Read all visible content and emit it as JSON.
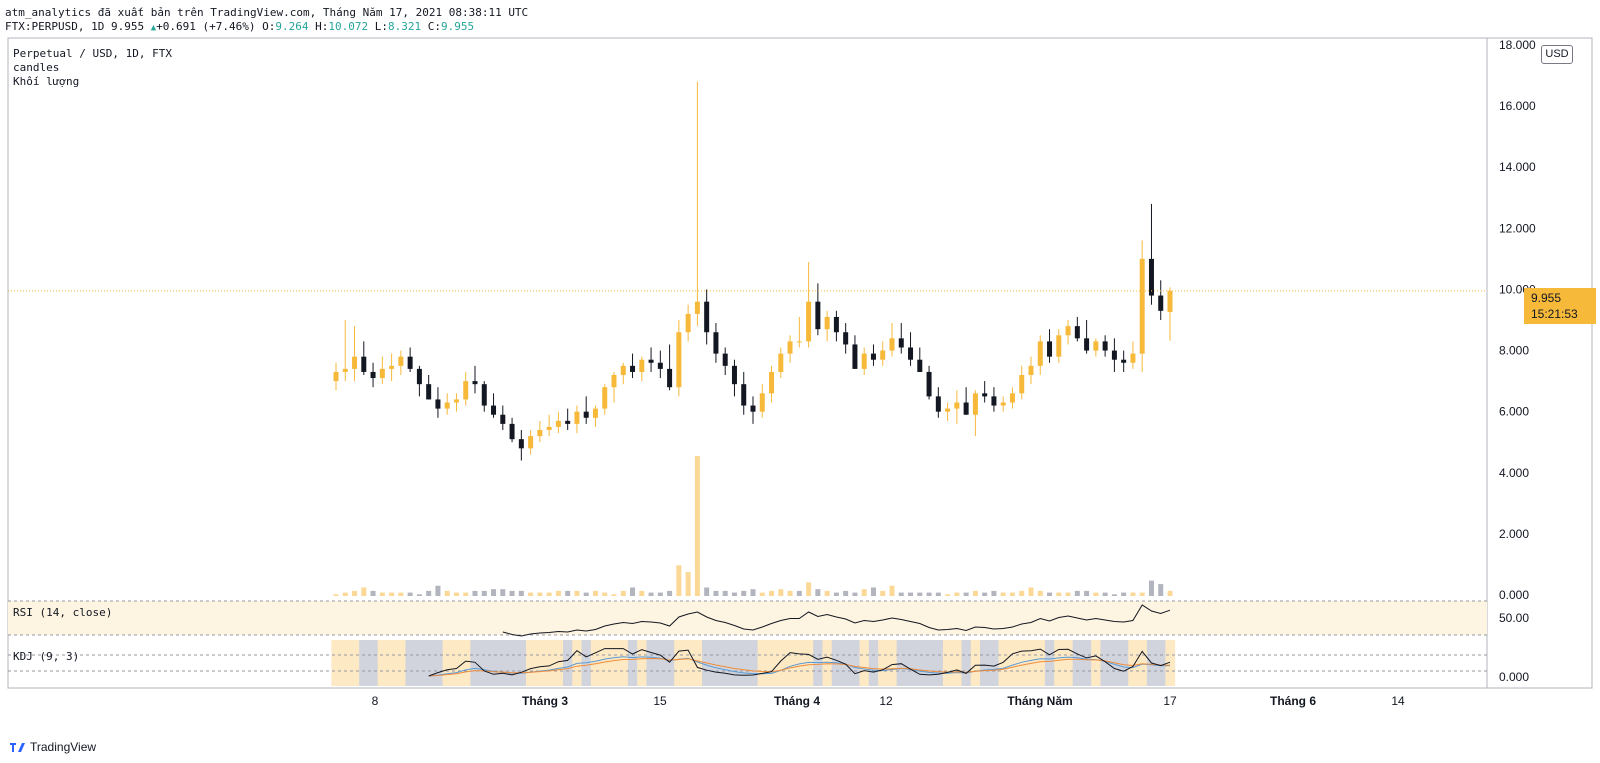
{
  "header": {
    "publisher_line": "atm_analytics đã xuất bản trên TradingView.com, Tháng Năm 17, 2021 08:38:11 UTC",
    "symbol": "FTX:PERPUSD, 1D",
    "last": "9.955",
    "change": "+0.691 (+7.46%)",
    "o_label": "O:",
    "o_value": "9.264",
    "h_label": "H:",
    "h_value": "10.072",
    "l_label": "L:",
    "l_value": "8.321",
    "c_label": "C:",
    "c_value": "9.955"
  },
  "legend": {
    "title": "Perpetual / USD, 1D, FTX",
    "series1": "candles",
    "series2": "Khối lượng"
  },
  "currency_button": "USD",
  "last_price_tag": {
    "price": "9.955",
    "countdown": "15:21:53"
  },
  "branding": "TradingView",
  "colors": {
    "up": "#f7b93a",
    "down": "#131722",
    "volume_up": "#fcd896",
    "volume_down": "#b2b5be",
    "rsi_band": "#fdf4e1",
    "kdj_k": "#5b9bd5",
    "kdj_d": "#f08c3a",
    "kdj_j": "#131722",
    "kdj_bg_up": "#fde9c4",
    "kdj_bg_down": "#d1d4dc"
  },
  "chart_data": {
    "type": "candlestick",
    "price_axis": {
      "ticks": [
        "18.000",
        "16.000",
        "14.000",
        "12.000",
        "10.000",
        "8.000",
        "6.000",
        "4.000",
        "2.000",
        "0.000"
      ],
      "ylim": [
        0,
        18
      ]
    },
    "x_axis": {
      "ticks": [
        "8",
        "Tháng 3",
        "15",
        "Tháng 4",
        "12",
        "Tháng Năm",
        "17",
        "Tháng 6",
        "14"
      ]
    },
    "candles": [
      [
        7.0,
        7.6,
        6.7,
        7.3
      ],
      [
        7.3,
        9.0,
        7.0,
        7.4
      ],
      [
        7.4,
        8.8,
        7.0,
        7.8
      ],
      [
        7.8,
        8.3,
        7.2,
        7.3
      ],
      [
        7.3,
        7.6,
        6.8,
        7.1
      ],
      [
        7.1,
        7.8,
        6.9,
        7.4
      ],
      [
        7.4,
        7.9,
        7.0,
        7.5
      ],
      [
        7.5,
        8.0,
        7.2,
        7.8
      ],
      [
        7.8,
        8.1,
        7.3,
        7.4
      ],
      [
        7.4,
        7.5,
        6.5,
        6.9
      ],
      [
        6.9,
        7.2,
        6.4,
        6.4
      ],
      [
        6.4,
        6.8,
        5.8,
        6.1
      ],
      [
        6.1,
        6.6,
        5.9,
        6.3
      ],
      [
        6.3,
        6.6,
        6.0,
        6.4
      ],
      [
        6.4,
        7.3,
        6.2,
        7.0
      ],
      [
        7.0,
        7.5,
        6.6,
        6.9
      ],
      [
        6.9,
        7.0,
        6.0,
        6.2
      ],
      [
        6.2,
        6.6,
        5.8,
        5.9
      ],
      [
        5.9,
        6.2,
        5.4,
        5.6
      ],
      [
        5.6,
        5.8,
        5.0,
        5.1
      ],
      [
        5.1,
        5.4,
        4.4,
        4.8
      ],
      [
        4.8,
        5.4,
        4.6,
        5.2
      ],
      [
        5.2,
        5.7,
        5.0,
        5.4
      ],
      [
        5.4,
        5.9,
        5.2,
        5.5
      ],
      [
        5.5,
        6.0,
        5.3,
        5.7
      ],
      [
        5.7,
        6.1,
        5.4,
        5.6
      ],
      [
        5.6,
        6.2,
        5.3,
        6.0
      ],
      [
        6.0,
        6.5,
        5.6,
        5.8
      ],
      [
        5.8,
        6.2,
        5.5,
        6.1
      ],
      [
        6.1,
        6.9,
        5.9,
        6.8
      ],
      [
        6.8,
        7.3,
        6.3,
        7.2
      ],
      [
        7.2,
        7.6,
        6.9,
        7.5
      ],
      [
        7.5,
        7.9,
        7.1,
        7.3
      ],
      [
        7.3,
        7.8,
        7.0,
        7.7
      ],
      [
        7.7,
        8.1,
        7.3,
        7.6
      ],
      [
        7.6,
        8.0,
        7.1,
        7.4
      ],
      [
        7.4,
        8.2,
        6.7,
        6.8
      ],
      [
        6.8,
        9.0,
        6.5,
        8.6
      ],
      [
        8.6,
        9.5,
        8.3,
        9.2
      ],
      [
        9.2,
        16.8,
        8.8,
        9.6
      ],
      [
        9.6,
        10.0,
        8.2,
        8.6
      ],
      [
        8.6,
        8.9,
        7.6,
        7.9
      ],
      [
        7.9,
        8.1,
        7.2,
        7.5
      ],
      [
        7.5,
        7.7,
        6.5,
        6.9
      ],
      [
        6.9,
        7.3,
        5.9,
        6.2
      ],
      [
        6.2,
        6.5,
        5.6,
        6.0
      ],
      [
        6.0,
        6.9,
        5.8,
        6.6
      ],
      [
        6.6,
        7.5,
        6.3,
        7.3
      ],
      [
        7.3,
        8.1,
        7.1,
        7.9
      ],
      [
        7.9,
        8.5,
        7.6,
        8.3
      ],
      [
        8.3,
        9.1,
        8.1,
        8.3
      ],
      [
        8.3,
        10.9,
        8.1,
        9.6
      ],
      [
        9.6,
        10.2,
        8.5,
        8.7
      ],
      [
        8.7,
        9.3,
        8.3,
        9.1
      ],
      [
        9.1,
        9.3,
        8.3,
        8.6
      ],
      [
        8.6,
        8.9,
        7.9,
        8.2
      ],
      [
        8.2,
        8.5,
        7.4,
        7.4
      ],
      [
        7.4,
        8.1,
        7.2,
        7.9
      ],
      [
        7.9,
        8.2,
        7.5,
        7.7
      ],
      [
        7.7,
        8.3,
        7.5,
        8.0
      ],
      [
        8.0,
        8.9,
        7.8,
        8.4
      ],
      [
        8.4,
        8.9,
        7.9,
        8.1
      ],
      [
        8.1,
        8.6,
        7.5,
        7.7
      ],
      [
        7.7,
        8.1,
        7.3,
        7.3
      ],
      [
        7.3,
        7.5,
        6.4,
        6.5
      ],
      [
        6.5,
        6.8,
        5.8,
        6.0
      ],
      [
        6.0,
        6.3,
        5.7,
        6.1
      ],
      [
        6.1,
        6.7,
        5.6,
        6.3
      ],
      [
        6.3,
        6.8,
        5.9,
        5.9
      ],
      [
        5.9,
        6.7,
        5.2,
        6.6
      ],
      [
        6.6,
        7.0,
        6.3,
        6.5
      ],
      [
        6.5,
        6.8,
        6.0,
        6.2
      ],
      [
        6.2,
        6.5,
        6.0,
        6.3
      ],
      [
        6.3,
        6.8,
        6.1,
        6.6
      ],
      [
        6.6,
        7.5,
        6.4,
        7.2
      ],
      [
        7.2,
        7.8,
        6.9,
        7.5
      ],
      [
        7.5,
        8.5,
        7.2,
        8.3
      ],
      [
        8.3,
        8.7,
        7.6,
        7.8
      ],
      [
        7.8,
        8.7,
        7.6,
        8.5
      ],
      [
        8.5,
        9.0,
        8.2,
        8.8
      ],
      [
        8.8,
        9.1,
        8.3,
        8.4
      ],
      [
        8.4,
        9.0,
        7.9,
        8.0
      ],
      [
        8.0,
        8.4,
        7.8,
        8.3
      ],
      [
        8.3,
        8.5,
        7.8,
        8.0
      ],
      [
        8.0,
        8.4,
        7.3,
        7.7
      ],
      [
        7.7,
        8.0,
        7.3,
        7.6
      ],
      [
        7.6,
        8.3,
        7.4,
        7.9
      ],
      [
        7.9,
        11.6,
        7.3,
        11.0
      ],
      [
        11.0,
        12.8,
        9.5,
        9.8
      ],
      [
        9.8,
        10.3,
        9.0,
        9.3
      ],
      [
        9.264,
        10.072,
        8.321,
        9.955
      ]
    ],
    "volume": [
      1,
      2,
      3,
      5,
      3,
      2,
      2,
      2,
      2,
      1,
      3,
      6,
      3,
      2,
      2,
      3,
      3,
      4,
      4,
      3,
      3,
      2,
      2,
      2,
      3,
      3,
      3,
      2,
      3,
      2,
      1,
      3,
      5,
      3,
      2,
      2,
      3,
      18,
      14,
      82,
      5,
      3,
      3,
      2,
      3,
      4,
      2,
      3,
      4,
      3,
      3,
      8,
      4,
      3,
      2,
      3,
      2,
      4,
      5,
      3,
      6,
      2,
      2,
      2,
      2,
      2,
      1,
      2,
      2,
      3,
      2,
      3,
      2,
      2,
      3,
      5,
      3,
      2,
      2,
      2,
      3,
      3,
      2,
      2,
      1,
      2,
      2,
      2,
      9,
      7,
      3
    ],
    "volume_up": [
      1,
      1,
      1,
      1,
      0,
      1,
      1,
      1,
      0,
      0,
      0,
      0,
      1,
      1,
      1,
      0,
      0,
      0,
      0,
      0,
      0,
      1,
      1,
      1,
      1,
      0,
      1,
      0,
      1,
      1,
      1,
      1,
      0,
      1,
      0,
      0,
      0,
      1,
      1,
      1,
      0,
      0,
      0,
      0,
      0,
      0,
      1,
      1,
      1,
      1,
      0,
      1,
      0,
      1,
      0,
      0,
      0,
      1,
      0,
      1,
      1,
      0,
      0,
      0,
      0,
      0,
      1,
      1,
      0,
      1,
      0,
      0,
      1,
      1,
      1,
      1,
      1,
      0,
      1,
      1,
      0,
      0,
      1,
      0,
      0,
      0,
      1,
      1,
      0,
      0,
      1
    ],
    "rsi": {
      "label": "RSI (14, close)",
      "tick": "50.00"
    },
    "kdj": {
      "label": "KDJ (9, 3)",
      "tick": "0.000"
    }
  }
}
